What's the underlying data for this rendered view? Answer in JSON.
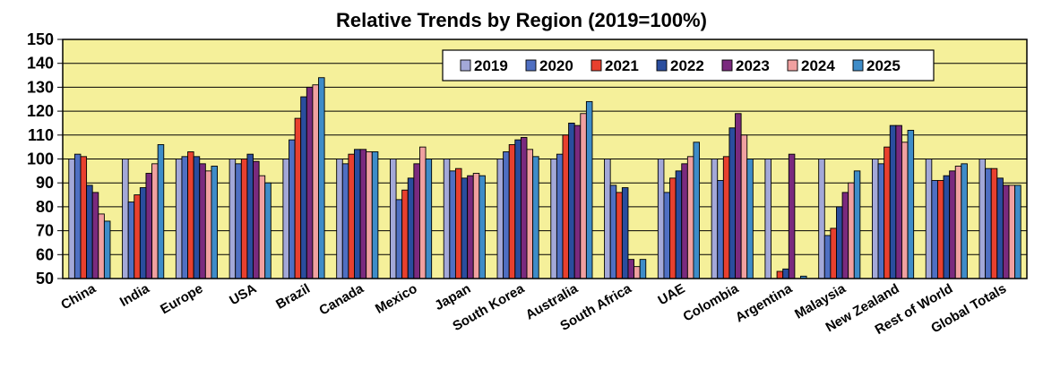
{
  "chart_data": {
    "type": "bar",
    "title": "Relative Trends by Region (2019=100%)",
    "xlabel": "",
    "ylabel": "",
    "ylim": [
      50,
      150
    ],
    "yticks": [
      50,
      60,
      70,
      80,
      90,
      100,
      110,
      120,
      130,
      140,
      150
    ],
    "grid": true,
    "legend_position": "top-right",
    "background_color": "#F5F09A",
    "categories": [
      "China",
      "India",
      "Europe",
      "USA",
      "Brazil",
      "Canada",
      "Mexico",
      "Japan",
      "South Korea",
      "Australia",
      "South Africa",
      "UAE",
      "Colombia",
      "Argentina",
      "Malaysia",
      "New Zealand",
      "Rest of World",
      "Global Totals"
    ],
    "series": [
      {
        "name": "2019",
        "color": "#A3A8D8",
        "values": [
          100,
          100,
          100,
          100,
          100,
          100,
          100,
          100,
          100,
          100,
          100,
          100,
          100,
          100,
          100,
          100,
          100,
          100
        ]
      },
      {
        "name": "2020",
        "color": "#4F6FC2",
        "values": [
          102,
          82,
          101,
          98,
          108,
          98,
          83,
          95,
          103,
          102,
          89,
          86,
          91,
          50,
          68,
          98,
          91,
          96
        ]
      },
      {
        "name": "2021",
        "color": "#E8402E",
        "values": [
          101,
          85,
          103,
          100,
          117,
          102,
          87,
          96,
          106,
          110,
          86,
          92,
          101,
          53,
          71,
          105,
          91,
          96
        ]
      },
      {
        "name": "2022",
        "color": "#2A4D9E",
        "values": [
          89,
          88,
          101,
          102,
          126,
          104,
          92,
          92,
          108,
          115,
          88,
          95,
          113,
          54,
          80,
          114,
          93,
          92
        ]
      },
      {
        "name": "2023",
        "color": "#7A2A7E",
        "values": [
          86,
          94,
          98,
          99,
          130,
          104,
          98,
          93,
          109,
          114,
          58,
          98,
          119,
          102,
          86,
          114,
          95,
          89
        ]
      },
      {
        "name": "2024",
        "color": "#F0A0A0",
        "values": [
          77,
          98,
          95,
          93,
          131,
          103,
          105,
          94,
          104,
          119,
          55,
          101,
          110,
          50,
          90,
          107,
          97,
          89
        ]
      },
      {
        "name": "2025",
        "color": "#3E8CC8",
        "values": [
          74,
          106,
          97,
          90,
          134,
          103,
          100,
          93,
          101,
          124,
          58,
          107,
          100,
          51,
          95,
          112,
          98,
          89
        ]
      }
    ]
  }
}
